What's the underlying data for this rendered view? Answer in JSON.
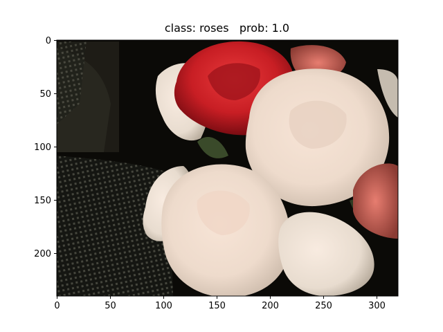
{
  "figure": {
    "title": "class: roses   prob: 1.0",
    "image_subject": "bouquet of roses: one red rose and several cream/white roses on a dark background",
    "x_axis": {
      "range": [
        0,
        320
      ],
      "ticks": [
        "0",
        "50",
        "100",
        "150",
        "200",
        "250",
        "300"
      ]
    },
    "y_axis": {
      "range": [
        0,
        240
      ],
      "inverted": true,
      "ticks": [
        "0",
        "50",
        "100",
        "150",
        "200"
      ]
    },
    "colors": {
      "red_rose": "#c81e24",
      "white_rose": "#f0e2d6",
      "background": "#0b0a07"
    }
  }
}
